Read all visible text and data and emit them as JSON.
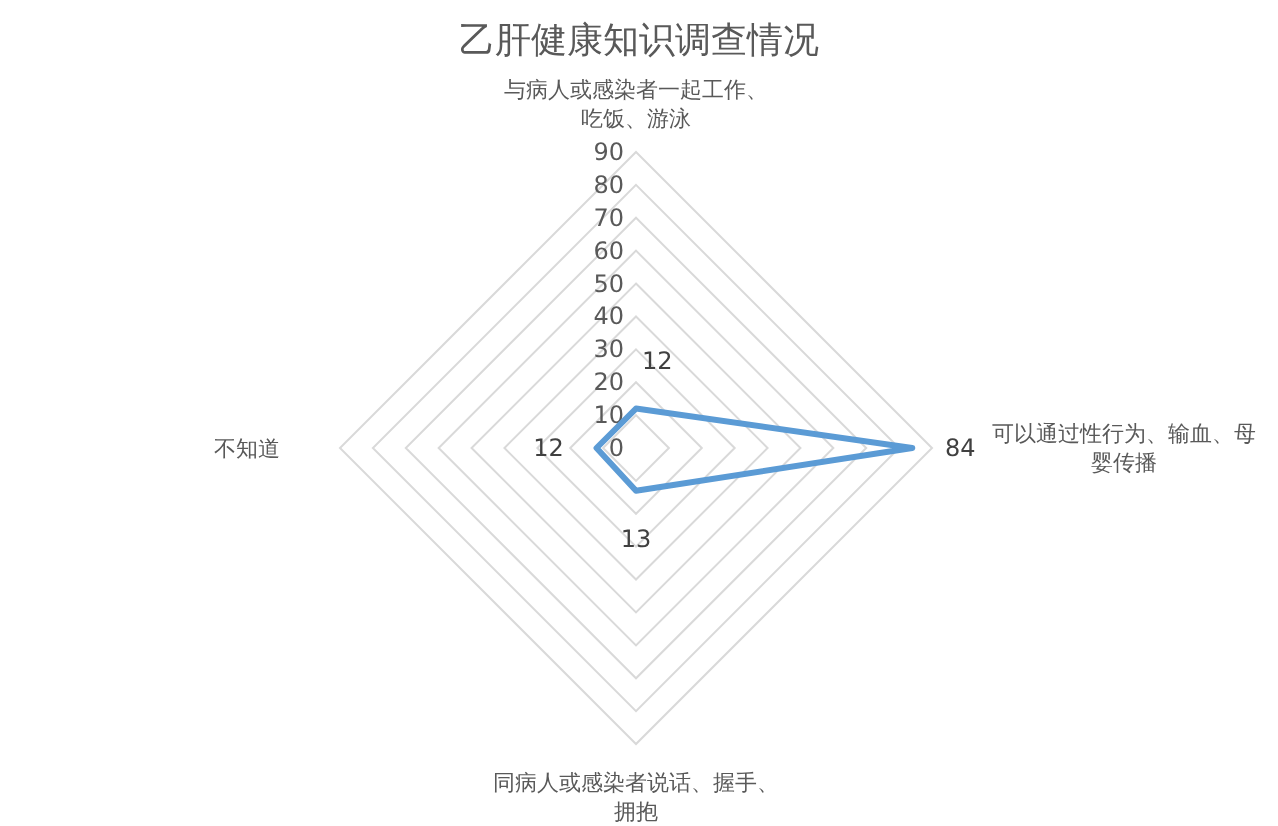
{
  "chart_data": {
    "type": "radar",
    "title": "乙肝健康知识调查情况",
    "categories": [
      "与病人或感染者一起工作、吃饭、游泳",
      "可以通过性行为、输血、母婴传播",
      "同病人或感染者说话、握手、拥抱",
      "不知道"
    ],
    "series": [
      {
        "color": "#5b9bd5",
        "values": [
          12,
          84,
          13,
          12
        ]
      }
    ],
    "ylim": [
      0,
      90
    ],
    "yticks": [
      0,
      10,
      20,
      30,
      40,
      50,
      60,
      70,
      80,
      90
    ],
    "grid": true,
    "data_labels": true,
    "marker": "none"
  }
}
